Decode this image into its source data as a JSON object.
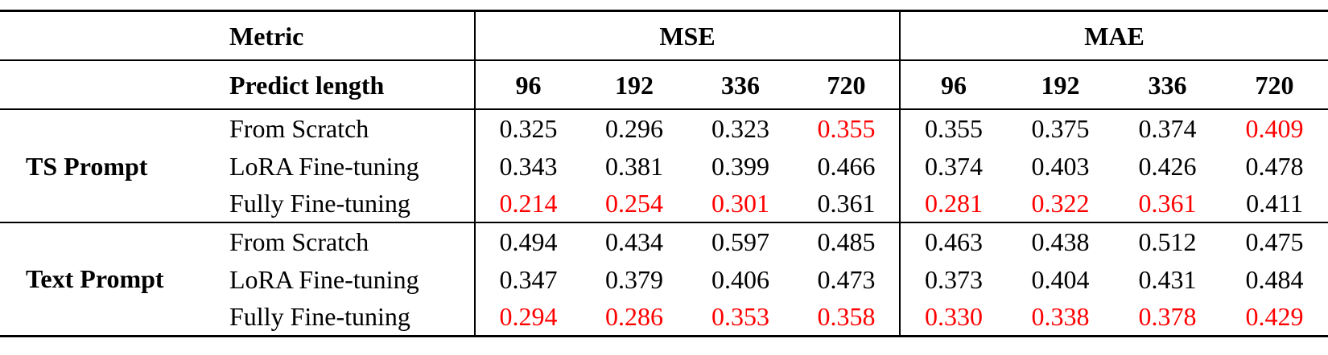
{
  "table": {
    "header": {
      "metric_label": "Metric",
      "col_groups": [
        "MSE",
        "MAE"
      ],
      "predict_length_label": "Predict length",
      "predict_lengths": [
        "96",
        "192",
        "336",
        "720"
      ]
    },
    "colors": {
      "highlight_red": "#ff0000",
      "text_black": "#000000"
    },
    "groups": [
      {
        "label": "TS Prompt",
        "rows": [
          {
            "label": "From Scratch",
            "mse": [
              "0.325",
              "0.296",
              "0.323",
              "0.355"
            ],
            "mse_red": [
              false,
              false,
              false,
              true
            ],
            "mae": [
              "0.355",
              "0.375",
              "0.374",
              "0.409"
            ],
            "mae_red": [
              false,
              false,
              false,
              true
            ]
          },
          {
            "label": "LoRA Fine-tuning",
            "mse": [
              "0.343",
              "0.381",
              "0.399",
              "0.466"
            ],
            "mse_red": [
              false,
              false,
              false,
              false
            ],
            "mae": [
              "0.374",
              "0.403",
              "0.426",
              "0.478"
            ],
            "mae_red": [
              false,
              false,
              false,
              false
            ]
          },
          {
            "label": "Fully Fine-tuning",
            "mse": [
              "0.214",
              "0.254",
              "0.301",
              "0.361"
            ],
            "mse_red": [
              true,
              true,
              true,
              false
            ],
            "mae": [
              "0.281",
              "0.322",
              "0.361",
              "0.411"
            ],
            "mae_red": [
              true,
              true,
              true,
              false
            ]
          }
        ]
      },
      {
        "label": "Text Prompt",
        "rows": [
          {
            "label": "From Scratch",
            "mse": [
              "0.494",
              "0.434",
              "0.597",
              "0.485"
            ],
            "mse_red": [
              false,
              false,
              false,
              false
            ],
            "mae": [
              "0.463",
              "0.438",
              "0.512",
              "0.475"
            ],
            "mae_red": [
              false,
              false,
              false,
              false
            ]
          },
          {
            "label": "LoRA Fine-tuning",
            "mse": [
              "0.347",
              "0.379",
              "0.406",
              "0.473"
            ],
            "mse_red": [
              false,
              false,
              false,
              false
            ],
            "mae": [
              "0.373",
              "0.404",
              "0.431",
              "0.484"
            ],
            "mae_red": [
              false,
              false,
              false,
              false
            ]
          },
          {
            "label": "Fully Fine-tuning",
            "mse": [
              "0.294",
              "0.286",
              "0.353",
              "0.358"
            ],
            "mse_red": [
              true,
              true,
              true,
              true
            ],
            "mae": [
              "0.330",
              "0.338",
              "0.378",
              "0.429"
            ],
            "mae_red": [
              true,
              true,
              true,
              true
            ]
          }
        ]
      }
    ]
  }
}
